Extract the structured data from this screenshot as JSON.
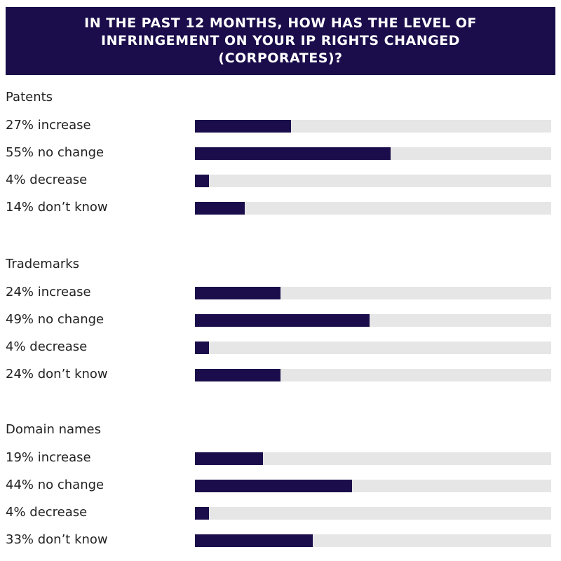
{
  "colors": {
    "header_bg": "#1b0c4b",
    "bar": "#1b0c4b",
    "track": "#e6e6e6"
  },
  "chart_data": {
    "type": "bar",
    "orientation": "horizontal",
    "title": "IN THE PAST 12 MONTHS, HOW HAS THE LEVEL OF INFRINGEMENT ON YOUR IP RIGHTS CHANGED (CORPORATES)?",
    "xlim": [
      0,
      100
    ],
    "groups": [
      {
        "name": "Patents",
        "items": [
          {
            "label": "27% increase",
            "value": 27
          },
          {
            "label": "55% no change",
            "value": 55
          },
          {
            "label": "4% decrease",
            "value": 4
          },
          {
            "label": "14% don’t know",
            "value": 14
          }
        ]
      },
      {
        "name": "Trademarks",
        "items": [
          {
            "label": "24% increase",
            "value": 24
          },
          {
            "label": "49% no change",
            "value": 49
          },
          {
            "label": "4% decrease",
            "value": 4
          },
          {
            "label": "24% don’t know",
            "value": 24
          }
        ]
      },
      {
        "name": "Domain names",
        "items": [
          {
            "label": "19% increase",
            "value": 19
          },
          {
            "label": "44% no change",
            "value": 44
          },
          {
            "label": "4% decrease",
            "value": 4
          },
          {
            "label": "33% don’t know",
            "value": 33
          }
        ]
      }
    ]
  }
}
